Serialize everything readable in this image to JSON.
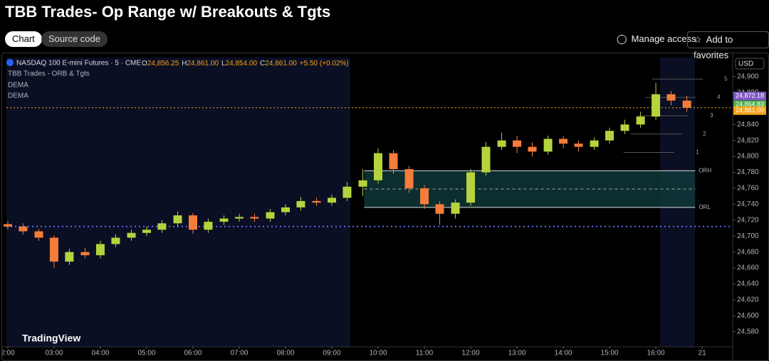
{
  "header": {
    "title": "TBB Trades- Op Range w/ Breakouts & Tgts",
    "tabs": [
      "Chart",
      "Source code"
    ],
    "actions": [
      "Manage access",
      "Add to favorites"
    ]
  },
  "legend": {
    "symbol": "NASDAQ 100 E-mini Futures · 5 · CME",
    "ohlc": [
      {
        "label": "O",
        "value": "24,856.25"
      },
      {
        "label": "H",
        "value": "24,861.00"
      },
      {
        "label": "L",
        "value": "24,854.00"
      },
      {
        "label": "C",
        "value": "24,861.00"
      }
    ],
    "change": "+5.50 (+0.02%)",
    "indicators": [
      "TBB Trades - ORB & Tgts",
      "DEMA",
      "DEMA"
    ]
  },
  "currency": "USD",
  "brand": "TradingView",
  "chart_data": {
    "type": "candlestick",
    "x": [
      2,
      2.33,
      2.67,
      3,
      3.33,
      3.67,
      4,
      4.33,
      4.67,
      5,
      5.33,
      5.67,
      6,
      6.33,
      6.67,
      7,
      7.33,
      7.67,
      8,
      8.33,
      8.67,
      9,
      9.33,
      9.67,
      10,
      10.33,
      10.67,
      11,
      11.33,
      11.67,
      12,
      12.33,
      12.67,
      13,
      13.33,
      13.67,
      14,
      14.33,
      14.67,
      15,
      15.33,
      15.67,
      16,
      16.33,
      16.67
    ],
    "open": [
      24715,
      24712,
      24706,
      24698,
      24668,
      24680,
      24676,
      24690,
      24698,
      24704,
      24708,
      24716,
      24726,
      24708,
      24718,
      24722,
      24724,
      24722,
      24730,
      24736,
      24744,
      24742,
      24748,
      24762,
      24770,
      24804,
      24784,
      24760,
      24740,
      24728,
      24742,
      24780,
      24812,
      24820,
      24812,
      24806,
      24822,
      24816,
      24812,
      24820,
      24832,
      24840,
      24850,
      24878,
      24870
    ],
    "high": [
      24719,
      24716,
      24709,
      24701,
      24684,
      24685,
      24694,
      24702,
      24708,
      24712,
      24720,
      24731,
      24729,
      24722,
      24726,
      24728,
      24728,
      24734,
      24740,
      24749,
      24748,
      24752,
      24768,
      24784,
      24810,
      24808,
      24788,
      24764,
      24744,
      24746,
      24784,
      24818,
      24830,
      24826,
      24818,
      24826,
      24826,
      24820,
      24824,
      24836,
      24846,
      24856,
      24892,
      24882,
      24876
    ],
    "low": [
      24708,
      24702,
      24694,
      24660,
      24664,
      24672,
      24672,
      24686,
      24694,
      24700,
      24704,
      24712,
      24703,
      24704,
      24714,
      24718,
      24718,
      24718,
      24726,
      24732,
      24738,
      24738,
      24744,
      24750,
      24766,
      24778,
      24754,
      24734,
      24714,
      24722,
      24738,
      24776,
      24808,
      24804,
      24800,
      24802,
      24810,
      24806,
      24808,
      24816,
      24828,
      24836,
      24846,
      24864,
      24856
    ],
    "close": [
      24712,
      24706,
      24698,
      24668,
      24680,
      24676,
      24690,
      24698,
      24704,
      24708,
      24716,
      24726,
      24708,
      24718,
      24722,
      24724,
      24722,
      24730,
      24736,
      24744,
      24742,
      24748,
      24762,
      24770,
      24804,
      24784,
      24760,
      24740,
      24728,
      24742,
      24780,
      24812,
      24820,
      24812,
      24806,
      24822,
      24816,
      24812,
      24820,
      24832,
      24840,
      24850,
      24878,
      24870,
      24861
    ],
    "up_color": "#b5d33d",
    "down_color": "#f57c3a",
    "xlim": [
      1.97,
      17.66
    ],
    "xticks": [
      {
        "value": 2,
        "label": "2:00"
      },
      {
        "value": 3,
        "label": "03:00"
      },
      {
        "value": 4,
        "label": "04:00"
      },
      {
        "value": 5,
        "label": "05:00"
      },
      {
        "value": 6,
        "label": "06:00"
      },
      {
        "value": 7,
        "label": "07:00"
      },
      {
        "value": 8,
        "label": "08:00"
      },
      {
        "value": 9,
        "label": "09:00"
      },
      {
        "value": 10,
        "label": "10:00"
      },
      {
        "value": 11,
        "label": "11:00"
      },
      {
        "value": 12,
        "label": "12:00"
      },
      {
        "value": 13,
        "label": "13:00"
      },
      {
        "value": 14,
        "label": "14:00"
      },
      {
        "value": 15,
        "label": "15:00"
      },
      {
        "value": 16,
        "label": "16:00"
      },
      {
        "value": 17,
        "label": "21"
      }
    ],
    "ylim": [
      24562,
      24924
    ],
    "yticks": [
      {
        "value": 24580,
        "label": "24,580"
      },
      {
        "value": 24600,
        "label": "24,600"
      },
      {
        "value": 24620,
        "label": "24,620"
      },
      {
        "value": 24640,
        "label": "24,640"
      },
      {
        "value": 24660,
        "label": "24,660"
      },
      {
        "value": 24680,
        "label": "24,680"
      },
      {
        "value": 24700,
        "label": "24,700"
      },
      {
        "value": 24720,
        "label": "24,720"
      },
      {
        "value": 24740,
        "label": "24,740"
      },
      {
        "value": 24760,
        "label": "24,760"
      },
      {
        "value": 24780,
        "label": "24,780"
      },
      {
        "value": 24800,
        "label": "24,800"
      },
      {
        "value": 24820,
        "label": "24,820"
      },
      {
        "value": 24840,
        "label": "24,840"
      },
      {
        "value": 24860,
        "label": "24,860"
      },
      {
        "value": 24880,
        "label": "24,880"
      },
      {
        "value": 24900,
        "label": "24,900"
      }
    ],
    "levels": [
      {
        "name": "ORH",
        "value": 24782
      },
      {
        "name": "ORL",
        "value": 24736
      }
    ],
    "reference_line": 24712,
    "targets": [
      {
        "value": 24805,
        "label": "1"
      },
      {
        "value": 24828,
        "label": "2"
      },
      {
        "value": 24851,
        "label": "3"
      },
      {
        "value": 24874,
        "label": "4"
      },
      {
        "value": 24897,
        "label": "5"
      }
    ],
    "price_labels": [
      {
        "value": 24872.18,
        "label": "24,872.18",
        "color": "#7e57c2"
      },
      {
        "value": 24864.83,
        "label": "24,864.83",
        "color": "#4caf50"
      },
      {
        "value": 24861.0,
        "label": "24,861.00",
        "color": "#f7a21b"
      }
    ]
  }
}
